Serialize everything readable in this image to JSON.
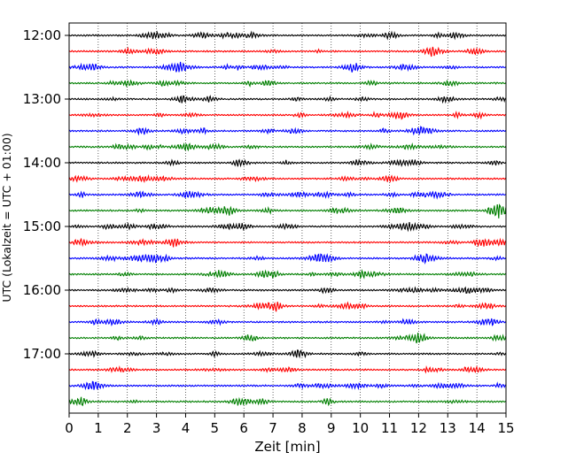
{
  "chart_data": {
    "type": "line",
    "title": "",
    "xlabel": "Zeit  [min]",
    "ylabel": "UTC (Lokalzeit = UTC + 01:00)",
    "xlim": [
      0,
      15
    ],
    "x_ticks": [
      "0",
      "1",
      "2",
      "3",
      "4",
      "5",
      "6",
      "7",
      "8",
      "9",
      "10",
      "11",
      "12",
      "13",
      "14",
      "15"
    ],
    "y_ticks": [
      "12:00",
      "13:00",
      "14:00",
      "15:00",
      "16:00",
      "17:00"
    ],
    "y_tick_times": [
      "12:00",
      "13:00",
      "14:00",
      "15:00",
      "16:00",
      "17:00"
    ],
    "grid": "vertical dotted at each minute",
    "trace_interval_minutes": 15,
    "series": [
      {
        "start": "12:00",
        "color": "#000000"
      },
      {
        "start": "12:15",
        "color": "#ff0000"
      },
      {
        "start": "12:30",
        "color": "#0000ff"
      },
      {
        "start": "12:45",
        "color": "#007f00"
      },
      {
        "start": "13:00",
        "color": "#000000"
      },
      {
        "start": "13:15",
        "color": "#ff0000"
      },
      {
        "start": "13:30",
        "color": "#0000ff"
      },
      {
        "start": "13:45",
        "color": "#007f00"
      },
      {
        "start": "14:00",
        "color": "#000000"
      },
      {
        "start": "14:15",
        "color": "#ff0000"
      },
      {
        "start": "14:30",
        "color": "#0000ff"
      },
      {
        "start": "14:45",
        "color": "#007f00"
      },
      {
        "start": "15:00",
        "color": "#000000"
      },
      {
        "start": "15:15",
        "color": "#ff0000"
      },
      {
        "start": "15:30",
        "color": "#0000ff"
      },
      {
        "start": "15:45",
        "color": "#007f00"
      },
      {
        "start": "16:00",
        "color": "#000000"
      },
      {
        "start": "16:15",
        "color": "#ff0000"
      },
      {
        "start": "16:30",
        "color": "#0000ff"
      },
      {
        "start": "16:45",
        "color": "#007f00"
      },
      {
        "start": "17:00",
        "color": "#000000"
      },
      {
        "start": "17:15",
        "color": "#ff0000"
      },
      {
        "start": "17:30",
        "color": "#0000ff"
      },
      {
        "start": "17:45",
        "color": "#007f00"
      }
    ]
  }
}
